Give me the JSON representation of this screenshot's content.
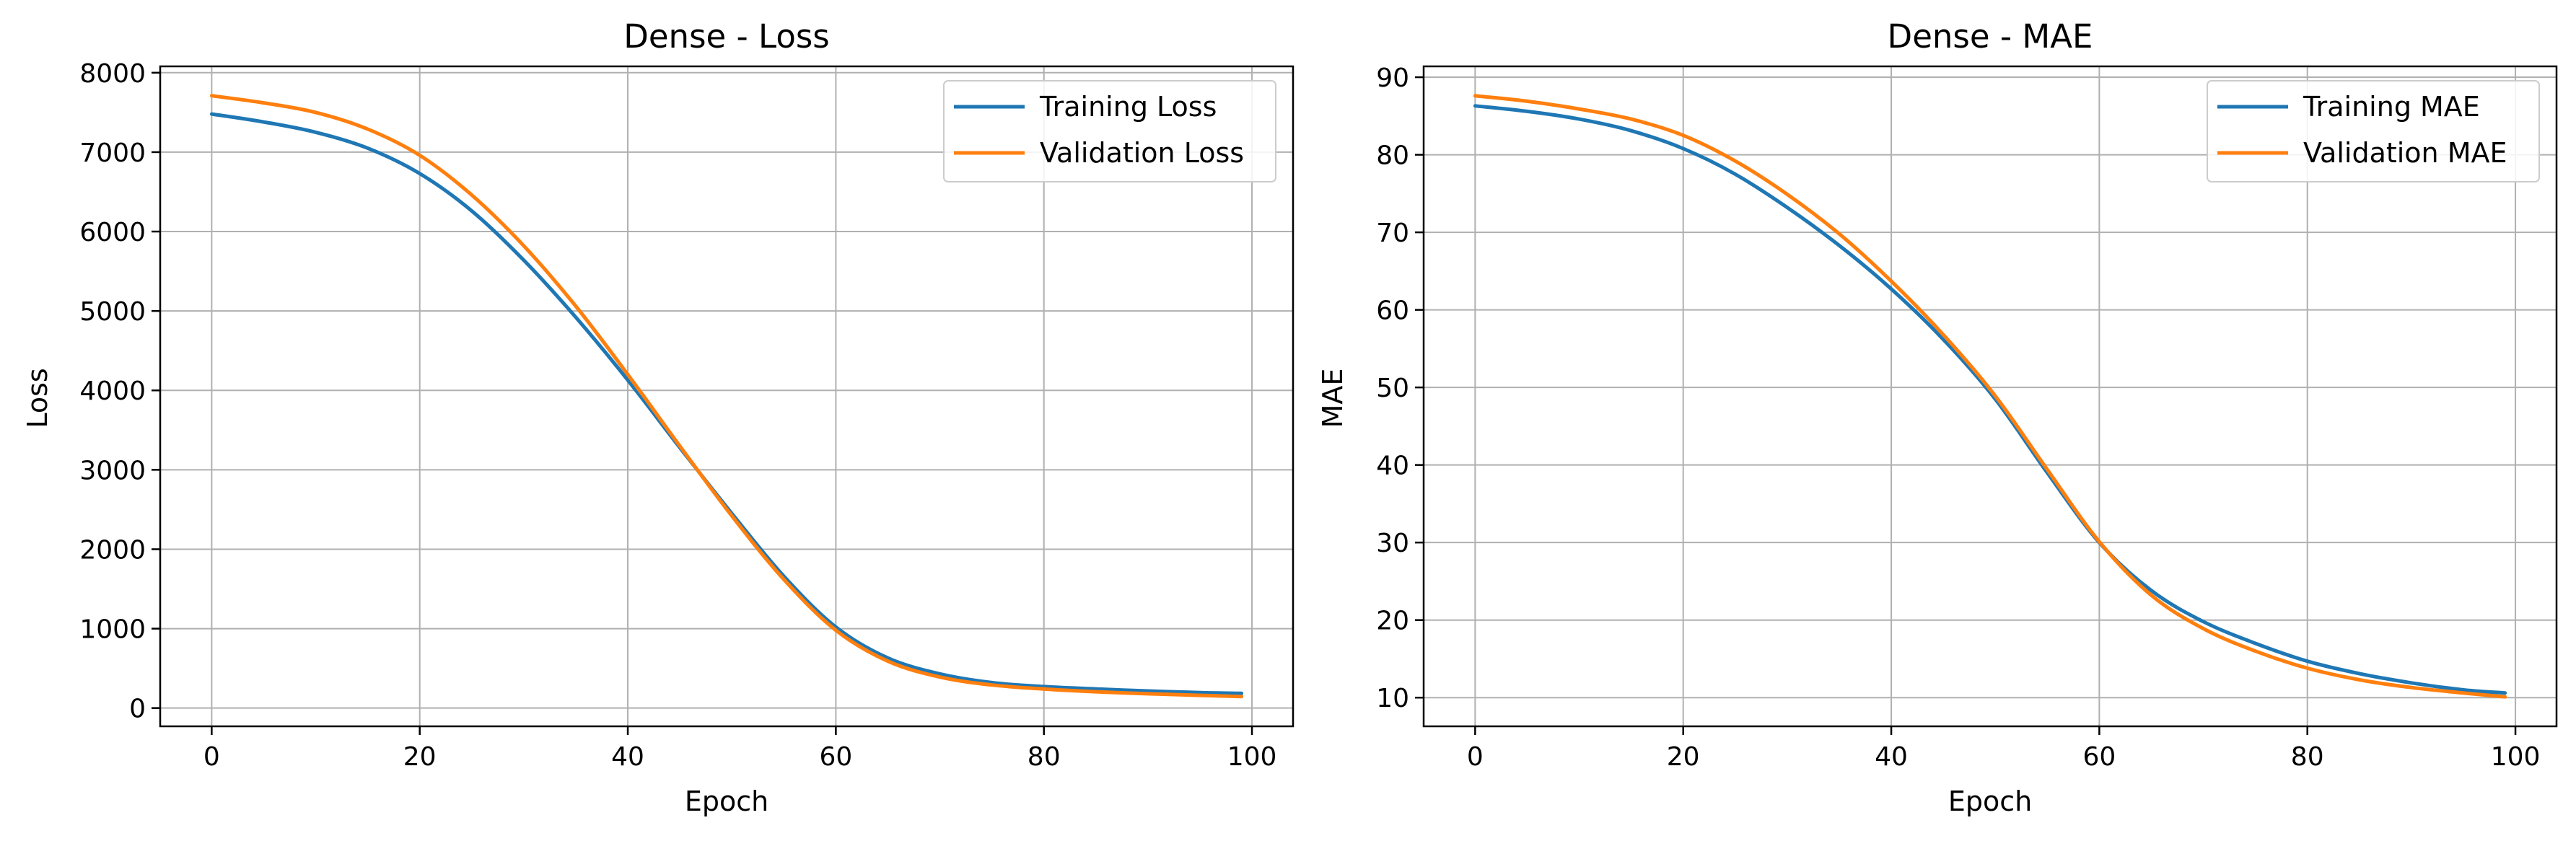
{
  "charts": [
    {
      "title": "Dense - Loss",
      "xlabel": "Epoch",
      "ylabel": "Loss",
      "xticks": [
        "0",
        "20",
        "40",
        "60",
        "80",
        "100"
      ],
      "yticks": [
        "0",
        "1000",
        "2000",
        "3000",
        "4000",
        "5000",
        "6000",
        "7000",
        "8000"
      ],
      "legend": [
        "Training Loss",
        "Validation Loss"
      ]
    },
    {
      "title": "Dense - MAE",
      "xlabel": "Epoch",
      "ylabel": "MAE",
      "xticks": [
        "0",
        "20",
        "40",
        "60",
        "80",
        "100"
      ],
      "yticks": [
        "10",
        "20",
        "30",
        "40",
        "50",
        "60",
        "70",
        "80",
        "90"
      ],
      "legend": [
        "Training MAE",
        "Validation MAE"
      ]
    }
  ],
  "colors": {
    "training": "#1f77b4",
    "validation": "#ff7f0e",
    "grid": "#b0b0b0"
  },
  "chart_data": [
    {
      "type": "line",
      "title": "Dense - Loss",
      "xlabel": "Epoch",
      "ylabel": "Loss",
      "xlim": [
        -4.95,
        103.95
      ],
      "ylim": [
        -230,
        8080
      ],
      "grid": true,
      "legend_position": "top-right",
      "x": [
        0,
        5,
        10,
        15,
        20,
        25,
        30,
        35,
        40,
        45,
        50,
        55,
        60,
        65,
        70,
        75,
        80,
        85,
        90,
        95,
        99
      ],
      "series": [
        {
          "name": "Training Loss",
          "color": "#1f77b4",
          "values": [
            7480,
            7380,
            7250,
            7050,
            6730,
            6260,
            5640,
            4920,
            4130,
            3280,
            2450,
            1660,
            1020,
            630,
            430,
            320,
            270,
            240,
            215,
            195,
            185
          ]
        },
        {
          "name": "Validation Loss",
          "color": "#ff7f0e",
          "values": [
            7710,
            7620,
            7500,
            7290,
            6960,
            6460,
            5820,
            5060,
            4200,
            3300,
            2420,
            1620,
            980,
            590,
            390,
            290,
            240,
            205,
            180,
            160,
            145
          ]
        }
      ]
    },
    {
      "type": "line",
      "title": "Dense - MAE",
      "xlabel": "Epoch",
      "ylabel": "MAE",
      "xlim": [
        -4.95,
        103.95
      ],
      "ylim": [
        6.3,
        91.4
      ],
      "grid": true,
      "legend_position": "top-right",
      "x": [
        0,
        5,
        10,
        15,
        20,
        25,
        30,
        35,
        40,
        45,
        50,
        55,
        60,
        65,
        70,
        75,
        80,
        85,
        90,
        95,
        99
      ],
      "series": [
        {
          "name": "Training MAE",
          "color": "#1f77b4",
          "values": [
            86.3,
            85.6,
            84.6,
            83.1,
            80.8,
            77.5,
            73.2,
            68.3,
            62.7,
            56.2,
            48.5,
            39.0,
            30.0,
            23.8,
            19.8,
            17.0,
            14.7,
            13.1,
            11.9,
            11.0,
            10.6
          ]
        },
        {
          "name": "Validation MAE",
          "color": "#ff7f0e",
          "values": [
            87.6,
            86.9,
            85.9,
            84.6,
            82.5,
            79.2,
            74.9,
            69.8,
            63.7,
            56.8,
            48.9,
            39.4,
            30.1,
            23.2,
            18.9,
            16.0,
            13.8,
            12.3,
            11.3,
            10.6,
            10.1
          ]
        }
      ]
    }
  ]
}
